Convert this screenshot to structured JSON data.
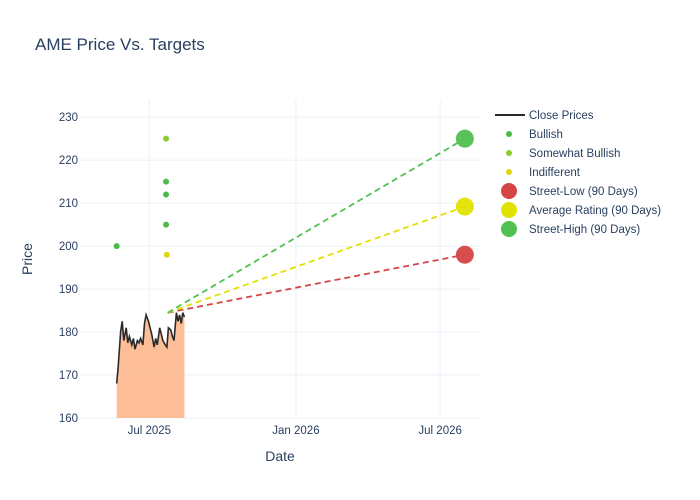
{
  "chart_data": {
    "type": "line",
    "title": "AME Price Vs. Targets",
    "xlabel": "Date",
    "ylabel": "Price",
    "xlim": [
      "2025-04-05",
      "2026-08-20"
    ],
    "ylim": [
      160,
      234
    ],
    "x_ticks": [
      {
        "date": "2025-07-01",
        "label": "Jul 2025"
      },
      {
        "date": "2026-01-01",
        "label": "Jan 2026"
      },
      {
        "date": "2026-07-01",
        "label": "Jul 2026"
      }
    ],
    "y_ticks": [
      160,
      170,
      180,
      190,
      200,
      210,
      220,
      230
    ],
    "grid": true,
    "legend_position": "right",
    "colors": {
      "close": "#2a2a2a",
      "fill": "#fdbb91",
      "bullish": "#4cbb4c",
      "somewhat_bullish": "#8dcc30",
      "indifferent": "#e0d60c",
      "street_low": "#d64545",
      "average": "#e2e200",
      "street_high": "#50c050"
    },
    "close_prices": {
      "name": "Close Prices",
      "x": [
        "2025-05-21",
        "2025-05-23",
        "2025-05-26",
        "2025-05-28",
        "2025-05-30",
        "2025-06-02",
        "2025-06-04",
        "2025-06-06",
        "2025-06-09",
        "2025-06-11",
        "2025-06-13",
        "2025-06-16",
        "2025-06-18",
        "2025-06-20",
        "2025-06-23",
        "2025-06-25",
        "2025-06-27",
        "2025-06-30",
        "2025-07-02",
        "2025-07-04",
        "2025-07-07",
        "2025-07-09",
        "2025-07-11",
        "2025-07-14",
        "2025-07-16",
        "2025-07-18",
        "2025-07-21",
        "2025-07-23",
        "2025-07-25",
        "2025-07-28",
        "2025-07-30",
        "2025-08-01",
        "2025-08-04",
        "2025-08-06",
        "2025-08-08",
        "2025-08-10",
        "2025-08-12",
        "2025-08-14"
      ],
      "y": [
        168,
        172,
        180,
        182.5,
        178,
        181,
        177.5,
        179,
        177,
        178.5,
        176,
        178,
        177.5,
        178.5,
        177,
        182,
        184,
        182.5,
        181,
        179.5,
        176.5,
        178.5,
        177,
        181,
        179.5,
        178,
        177,
        176.5,
        181,
        180.5,
        179,
        178,
        184.5,
        182.5,
        184,
        182,
        184.5,
        183.5
      ]
    },
    "ratings": [
      {
        "name": "Bullish",
        "points": [
          {
            "x": "2025-05-21",
            "y": 200
          },
          {
            "x": "2025-07-22",
            "y": 215
          },
          {
            "x": "2025-07-22",
            "y": 212
          },
          {
            "x": "2025-07-22",
            "y": 205
          }
        ]
      },
      {
        "name": "Somewhat Bullish",
        "points": [
          {
            "x": "2025-07-22",
            "y": 225
          }
        ]
      },
      {
        "name": "Indifferent",
        "points": [
          {
            "x": "2025-07-23",
            "y": 198
          }
        ]
      }
    ],
    "targets": [
      {
        "name": "Street-Low (90 Days)",
        "start": {
          "x": "2025-07-24",
          "y": 184.5
        },
        "end": {
          "x": "2026-08-01",
          "y": 198
        }
      },
      {
        "name": "Average Rating (90 Days)",
        "start": {
          "x": "2025-07-24",
          "y": 184.5
        },
        "end": {
          "x": "2026-08-01",
          "y": 209.2
        }
      },
      {
        "name": "Street-High (90 Days)",
        "start": {
          "x": "2025-07-24",
          "y": 184.5
        },
        "end": {
          "x": "2026-08-01",
          "y": 225
        }
      }
    ],
    "legend": [
      "Close Prices",
      "Bullish",
      "Somewhat Bullish",
      "Indifferent",
      "Street-Low (90 Days)",
      "Average Rating (90 Days)",
      "Street-High (90 Days)"
    ]
  }
}
